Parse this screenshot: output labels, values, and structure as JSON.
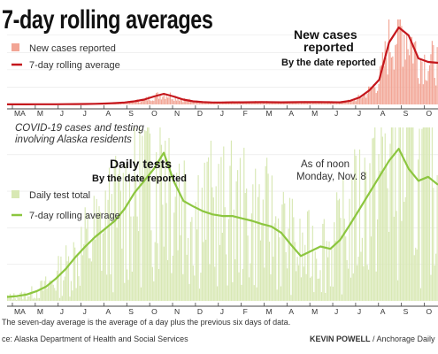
{
  "title": "7-day rolling averages",
  "intro_lines": [
    "COVID-19 cases and testing",
    "involving Alaska residents"
  ],
  "as_of": [
    "As of noon",
    "Monday, Nov. 8"
  ],
  "footnote": "The seven-day average is the average of a day plus the previous six days of data.",
  "source": "ce: Alaska Department of Health and Social Services",
  "credit": {
    "name": "KEVIN POWELL",
    "org": " / Anchorage Daily"
  },
  "colors": {
    "cases_bar": "#f2a595",
    "cases_line": "#c4161c",
    "tests_bar": "#d8e8b4",
    "tests_line": "#8cc63f",
    "axis": "#444444"
  },
  "chart_data": [
    {
      "type": "bar",
      "panel_title": "New cases reported",
      "subtitle": "By the date reported",
      "legend": [
        "New cases reported",
        "7-day rolling average"
      ],
      "x_tick_labels": [
        "MA",
        "M",
        "J",
        "J",
        "A",
        "S",
        "O",
        "N",
        "D",
        "J",
        "F",
        "M",
        "A",
        "M",
        "J",
        "J",
        "A",
        "S",
        "O"
      ],
      "y_tick_labels": [],
      "grid": true,
      "series": [
        {
          "values": [
            1,
            1,
            1,
            2,
            2,
            2,
            3,
            4,
            5,
            7,
            10,
            15,
            22,
            35,
            55,
            90,
            120,
            90,
            55,
            35,
            26,
            22,
            22,
            24,
            24,
            25,
            26,
            25,
            24,
            25,
            26,
            26,
            27,
            25,
            24,
            40,
            80,
            160,
            280,
            700,
            870,
            780,
            520,
            480,
            470
          ]
        }
      ]
    },
    {
      "type": "bar",
      "panel_title": "Daily tests",
      "subtitle": "By the date reported",
      "legend": [
        "Daily test total",
        "7-day rolling average"
      ],
      "x_tick_labels": [
        "MA",
        "M",
        "J",
        "J",
        "A",
        "S",
        "O",
        "N",
        "D",
        "J",
        "F",
        "M",
        "A",
        "M",
        "J",
        "J",
        "A",
        "S",
        "O"
      ],
      "y_tick_labels": [],
      "grid": true,
      "series": [
        {
          "values": [
            5,
            6,
            8,
            12,
            18,
            28,
            40,
            55,
            68,
            80,
            90,
            100,
            115,
            135,
            150,
            165,
            185,
            150,
            125,
            118,
            112,
            108,
            106,
            106,
            103,
            100,
            96,
            93,
            85,
            70,
            56,
            62,
            68,
            65,
            76,
            95,
            115,
            135,
            155,
            175,
            190,
            165,
            150,
            155,
            145
          ]
        }
      ]
    }
  ]
}
